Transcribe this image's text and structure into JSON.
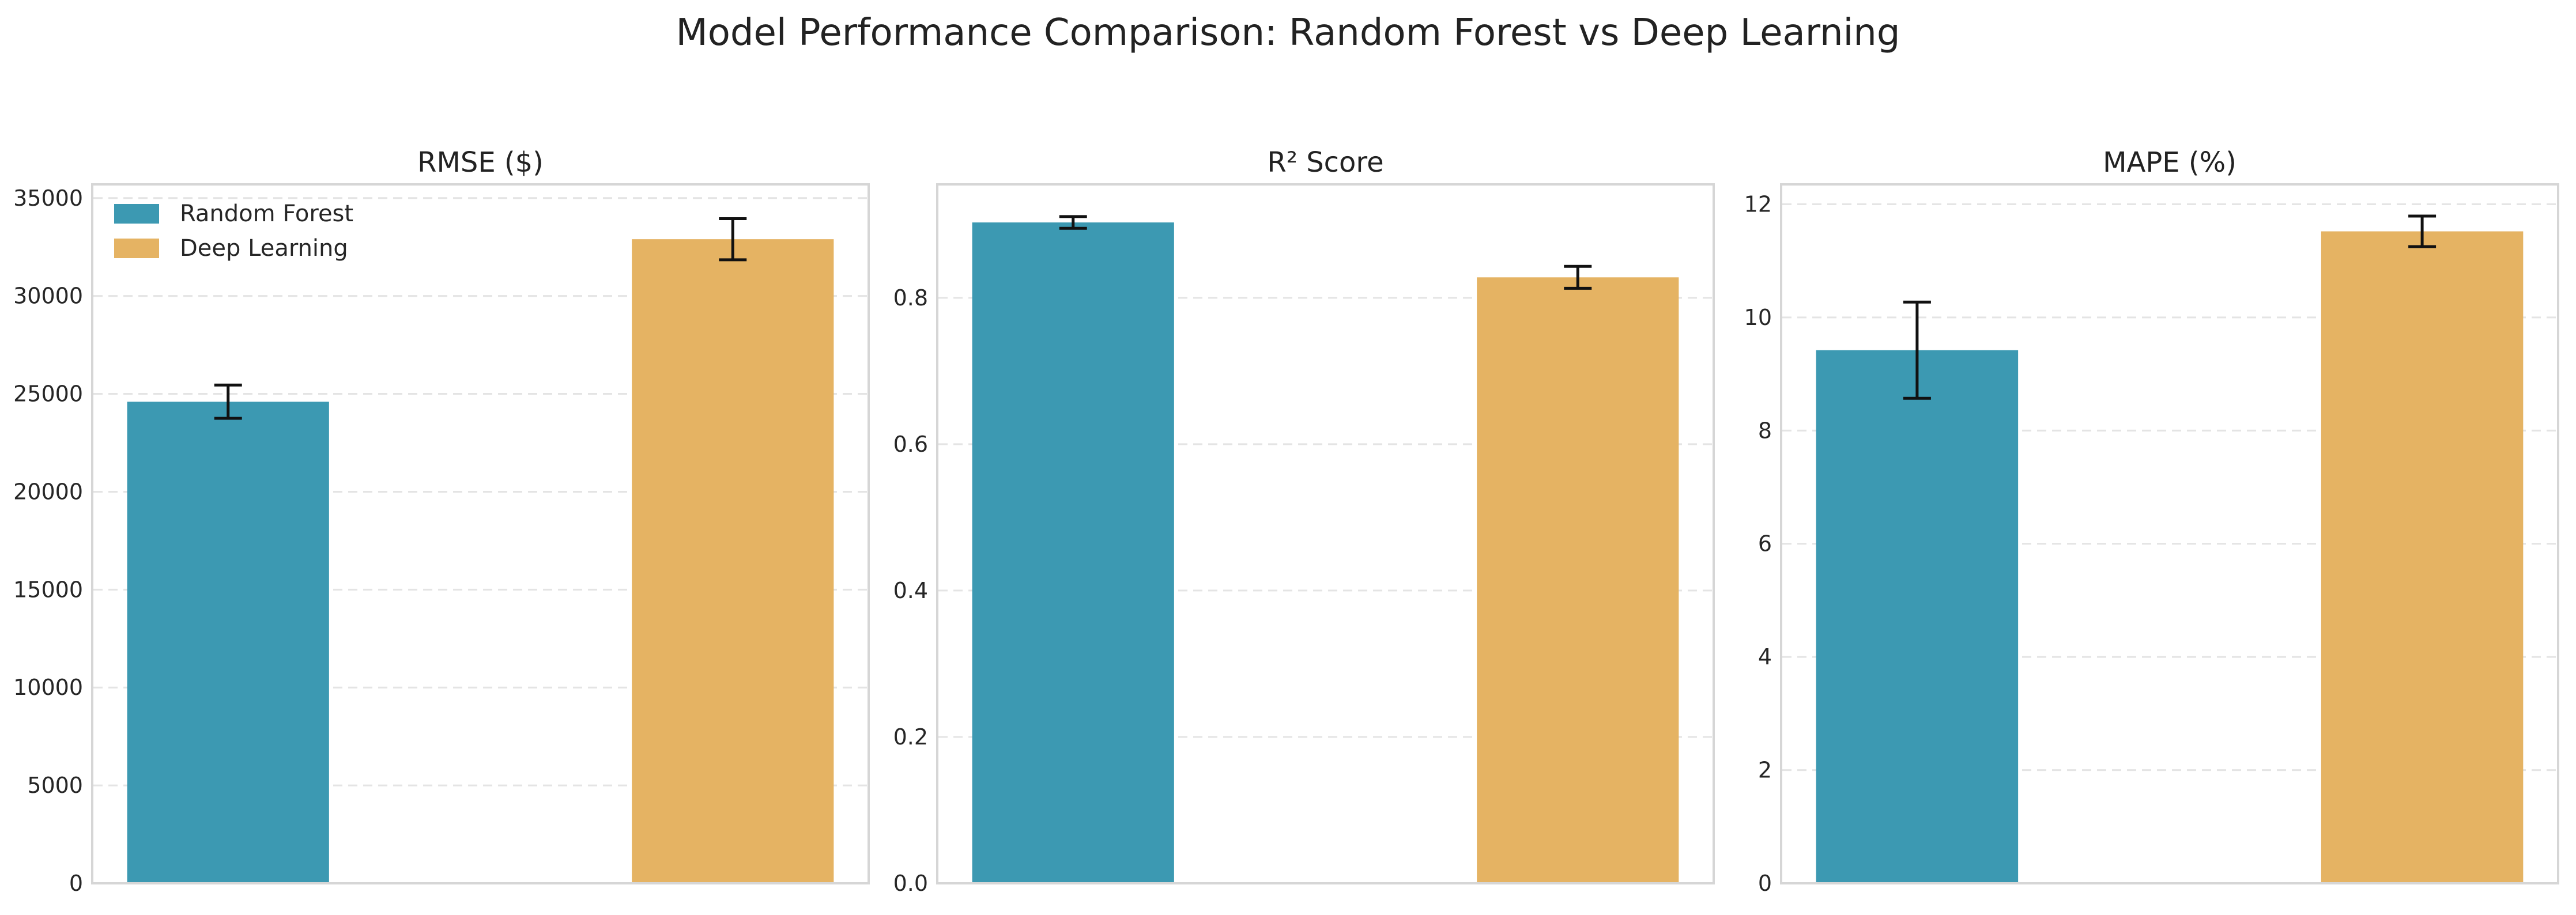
{
  "figure": {
    "title": "Model Performance Comparison: Random Forest vs Deep Learning"
  },
  "legend": {
    "placement": "upper-left",
    "entries": [
      {
        "label": "Random Forest",
        "color": "#3c99b2"
      },
      {
        "label": "Deep Learning",
        "color": "#e5b363"
      }
    ]
  },
  "colors": {
    "random_forest": "#3c99b2",
    "deep_learning": "#e5b363",
    "error_bar": "#111111",
    "grid": "#e4e4e4"
  },
  "chart_data": [
    {
      "type": "bar",
      "title": "RMSE ($)",
      "xlabel": "",
      "ylabel": "",
      "ylim": [
        0,
        35700
      ],
      "yticks": [
        0,
        5000,
        10000,
        15000,
        20000,
        25000,
        30000,
        35000
      ],
      "ytick_labels": [
        "0",
        "5000",
        "10000",
        "15000",
        "20000",
        "25000",
        "30000",
        "35000"
      ],
      "grid": true,
      "legend": true,
      "series": [
        {
          "name": "Random Forest",
          "values": [
            24600
          ],
          "error": [
            850
          ],
          "color": "#3c99b2"
        },
        {
          "name": "Deep Learning",
          "values": [
            32900
          ],
          "error": [
            1050
          ],
          "color": "#e5b363"
        }
      ]
    },
    {
      "type": "bar",
      "title": "R² Score",
      "xlabel": "",
      "ylabel": "",
      "ylim": [
        0,
        0.955
      ],
      "yticks": [
        0.0,
        0.2,
        0.4,
        0.6,
        0.8
      ],
      "ytick_labels": [
        "0.0",
        "0.2",
        "0.4",
        "0.6",
        "0.8"
      ],
      "grid": true,
      "legend": false,
      "series": [
        {
          "name": "Random Forest",
          "values": [
            0.903
          ],
          "error": [
            0.008
          ],
          "color": "#3c99b2"
        },
        {
          "name": "Deep Learning",
          "values": [
            0.828
          ],
          "error": [
            0.015
          ],
          "color": "#e5b363"
        }
      ]
    },
    {
      "type": "bar",
      "title": "MAPE (%)",
      "xlabel": "",
      "ylabel": "",
      "ylim": [
        0,
        12.35
      ],
      "yticks": [
        0,
        2,
        4,
        6,
        8,
        10,
        12
      ],
      "ytick_labels": [
        "0",
        "2",
        "4",
        "6",
        "8",
        "10",
        "12"
      ],
      "grid": true,
      "legend": false,
      "series": [
        {
          "name": "Random Forest",
          "values": [
            9.42
          ],
          "error": [
            0.85
          ],
          "color": "#3c99b2"
        },
        {
          "name": "Deep Learning",
          "values": [
            11.52
          ],
          "error": [
            0.27
          ],
          "color": "#e5b363"
        }
      ]
    }
  ]
}
